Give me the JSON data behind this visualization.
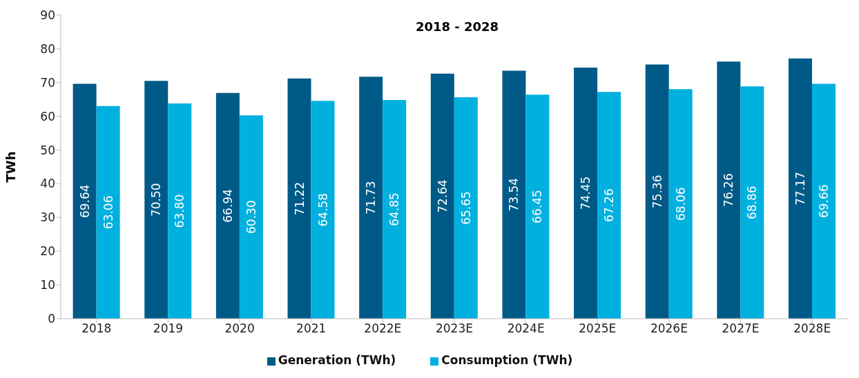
{
  "chart_data": {
    "type": "bar",
    "title": "2018 - 2028",
    "ylabel": "TWh",
    "categories": [
      "2018",
      "2019",
      "2020",
      "2021",
      "2022E",
      "2023E",
      "2024E",
      "2025E",
      "2026E",
      "2027E",
      "2028E"
    ],
    "series": [
      {
        "name": "Generation (TWh)",
        "color": "#005a87",
        "values": [
          69.64,
          70.5,
          66.94,
          71.22,
          71.73,
          72.64,
          73.54,
          74.45,
          75.36,
          76.26,
          77.17
        ],
        "value_labels": [
          "69.64",
          "70.50",
          "66.94",
          "71.22",
          "71.73",
          "72.64",
          "73.54",
          "74.45",
          "75.36",
          "76.26",
          "77.17"
        ]
      },
      {
        "name": "Consumption (TWh)",
        "color": "#00b0df",
        "values": [
          63.06,
          63.8,
          60.3,
          64.58,
          64.85,
          65.65,
          66.45,
          67.26,
          68.06,
          68.86,
          69.66
        ],
        "value_labels": [
          "63.06",
          "63.80",
          "60.30",
          "64.58",
          "64.85",
          "65.65",
          "66.45",
          "67.26",
          "68.06",
          "68.86",
          "69.66"
        ]
      }
    ],
    "ylim": [
      0,
      90
    ],
    "yticks": [
      0,
      10,
      20,
      30,
      40,
      50,
      60,
      70,
      80,
      90
    ],
    "grid": false,
    "legend": "bottom"
  }
}
